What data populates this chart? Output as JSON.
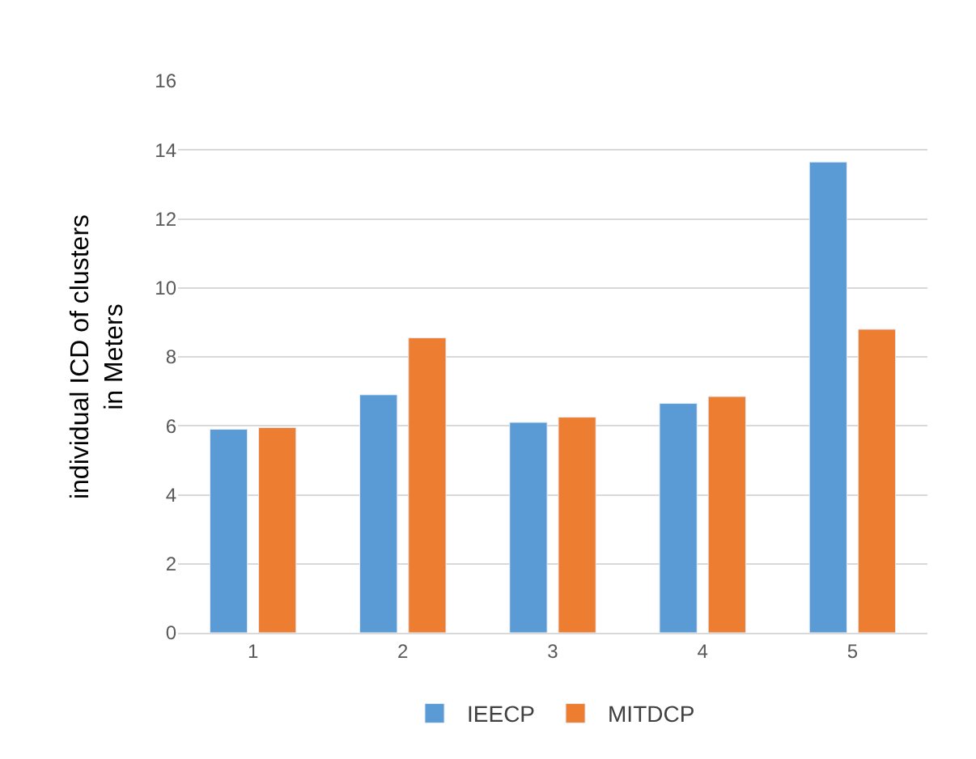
{
  "chart_data": {
    "type": "bar",
    "ylabel": "individual ICD of clusters\nin Meters",
    "categories": [
      "1",
      "2",
      "3",
      "4",
      "5"
    ],
    "series": [
      {
        "name": "IEECP",
        "color": "#5b9bd5",
        "values": [
          5.9,
          6.9,
          6.1,
          6.65,
          13.65
        ]
      },
      {
        "name": "MITDCP",
        "color": "#ed7d31",
        "values": [
          5.95,
          8.55,
          6.25,
          6.85,
          8.8
        ]
      }
    ],
    "ylim": [
      0,
      16
    ],
    "yticks": [
      0,
      2,
      4,
      6,
      8,
      10,
      12,
      14,
      16
    ],
    "grid": "y",
    "legend": "bottom"
  }
}
